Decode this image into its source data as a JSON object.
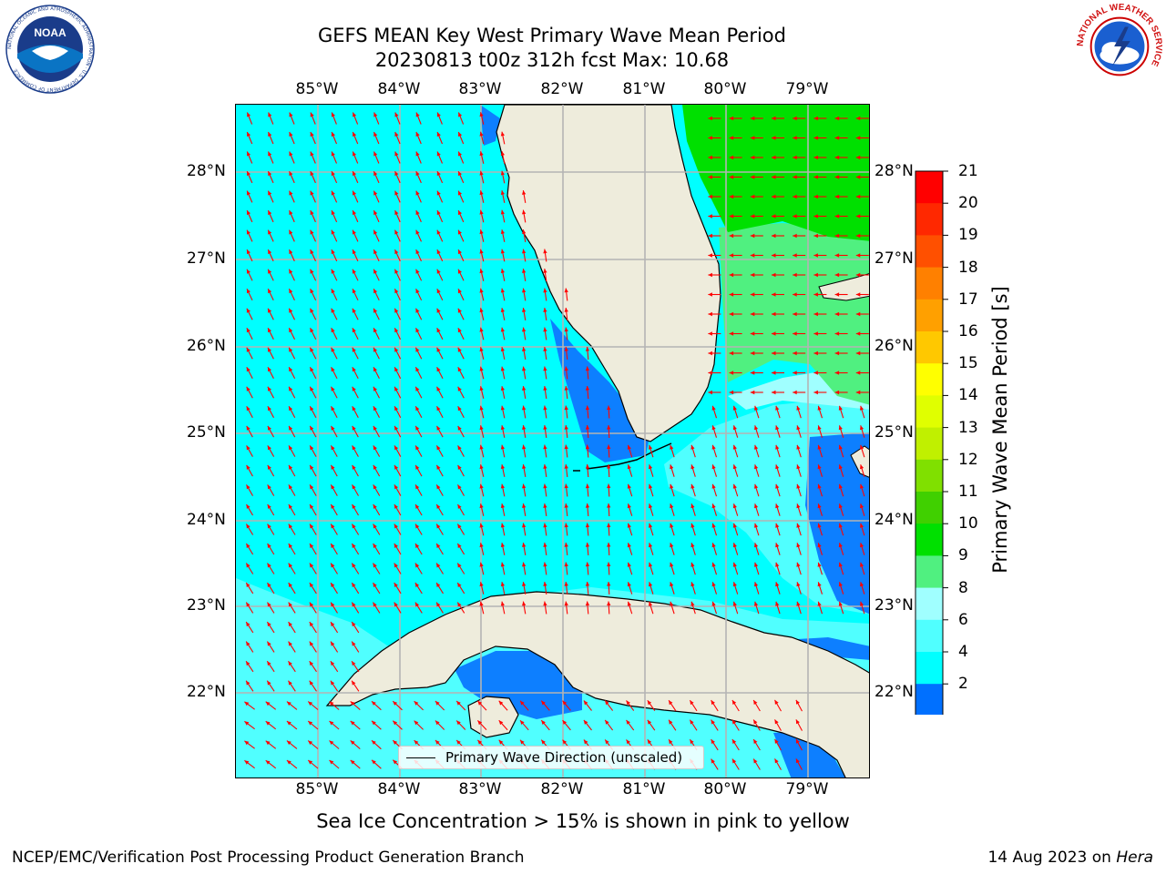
{
  "title": {
    "line1": "GEFS MEAN Key West Primary Wave Mean Period",
    "line2": "20230813 t00z 312h fcst   Max: 10.68"
  },
  "axes": {
    "lon_labels": [
      "85°W",
      "84°W",
      "83°W",
      "82°W",
      "81°W",
      "80°W",
      "79°W"
    ],
    "lat_labels": [
      "28°N",
      "27°N",
      "26°N",
      "25°N",
      "24°N",
      "23°N",
      "22°N"
    ]
  },
  "colorbar": {
    "label": "Primary Wave Mean Period [s]",
    "ticks": [
      "21",
      "20",
      "19",
      "18",
      "17",
      "16",
      "15",
      "14",
      "13",
      "12",
      "11",
      "10",
      "9",
      "8",
      "6",
      "4",
      "2"
    ],
    "colors": [
      "#ff0000",
      "#ff2800",
      "#ff5000",
      "#ff8000",
      "#ffa000",
      "#ffc800",
      "#ffff00",
      "#e0ff00",
      "#c0f000",
      "#80e000",
      "#40d000",
      "#00e000",
      "#50f080",
      "#a0ffff",
      "#50ffff",
      "#00ffff",
      "#0070ff",
      "#0000ff"
    ]
  },
  "map": {
    "land_color": "#eeecdc",
    "grid_color": "#b4b4b4",
    "arrow_color": "#ff0000",
    "shades": {
      "p2_4": "#0d7fff",
      "p4_6": "#00ffff",
      "p6_8": "#50ffff",
      "p8_9": "#a0ffff",
      "p9_10": "#50f080",
      "p10_11": "#00e000"
    }
  },
  "legend": {
    "text": "Primary Wave Direction (unscaled)"
  },
  "footer": {
    "note": "Sea Ice Concentration > 15% is shown in pink to yellow",
    "left": "NCEP/EMC/Verification Post Processing Product Generation Branch",
    "right_date": "14 Aug 2023 on ",
    "right_host": "Hera"
  },
  "logos": {
    "noaa_text": "NOAA",
    "noaa_ring": "NATIONAL OCEANIC AND ATMOSPHERIC ADMINISTRATION · U.S. DEPARTMENT OF COMMERCE",
    "nws_ring": "NATIONAL WEATHER SERVICE"
  }
}
